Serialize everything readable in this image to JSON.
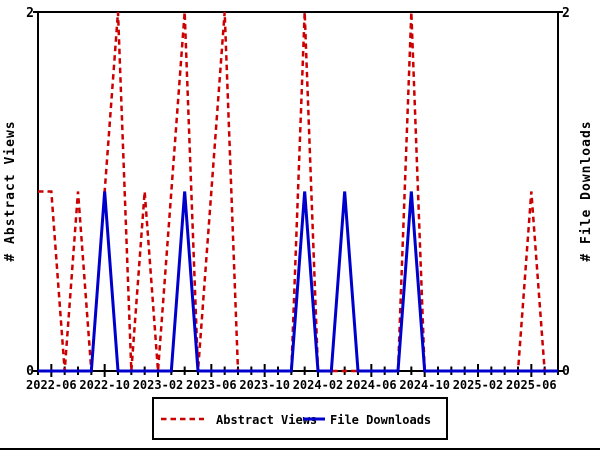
{
  "chart_data": {
    "type": "line",
    "title": "",
    "x": [
      "2022-05",
      "2022-06",
      "2022-07",
      "2022-08",
      "2022-09",
      "2022-10",
      "2022-11",
      "2022-12",
      "2023-01",
      "2023-02",
      "2023-03",
      "2023-04",
      "2023-05",
      "2023-06",
      "2023-07",
      "2023-08",
      "2023-09",
      "2023-10",
      "2023-11",
      "2023-12",
      "2024-01",
      "2024-02",
      "2024-03",
      "2024-04",
      "2024-05",
      "2024-06",
      "2024-07",
      "2024-08",
      "2024-09",
      "2024-10",
      "2024-11",
      "2024-12",
      "2025-01",
      "2025-02",
      "2025-03",
      "2025-04",
      "2025-05",
      "2025-06",
      "2025-07",
      "2025-08"
    ],
    "series": [
      {
        "name": "Abstract Views",
        "color": "#cc0000",
        "style": "dashed",
        "values": [
          1,
          1,
          0,
          1,
          0,
          1,
          2,
          0,
          1,
          0,
          1,
          2,
          0,
          1,
          2,
          0,
          0,
          0,
          0,
          0,
          2,
          0,
          0,
          0,
          0,
          0,
          0,
          0,
          2,
          0,
          0,
          0,
          0,
          0,
          0,
          0,
          0,
          1,
          0,
          0
        ]
      },
      {
        "name": "File Downloads",
        "color": "#0000cc",
        "style": "solid",
        "values": [
          0,
          0,
          0,
          0,
          0,
          1,
          0,
          0,
          0,
          0,
          0,
          1,
          0,
          0,
          0,
          0,
          0,
          0,
          0,
          0,
          1,
          0,
          0,
          1,
          0,
          0,
          0,
          0,
          1,
          0,
          0,
          0,
          0,
          0,
          0,
          0,
          0,
          0,
          0,
          0
        ]
      }
    ],
    "ylabel_left": "# Abstract Views",
    "ylabel_right": "# File Downloads",
    "ylim": [
      0,
      2
    ],
    "ytick_labels": [
      "0",
      "2"
    ],
    "xtick_labels": [
      "2022-06",
      "2022-10",
      "2023-02",
      "2023-06",
      "2023-10",
      "2024-02",
      "2024-06",
      "2024-10",
      "2025-02",
      "2025-06"
    ],
    "grid": false,
    "legend_position": "bottom-center"
  }
}
